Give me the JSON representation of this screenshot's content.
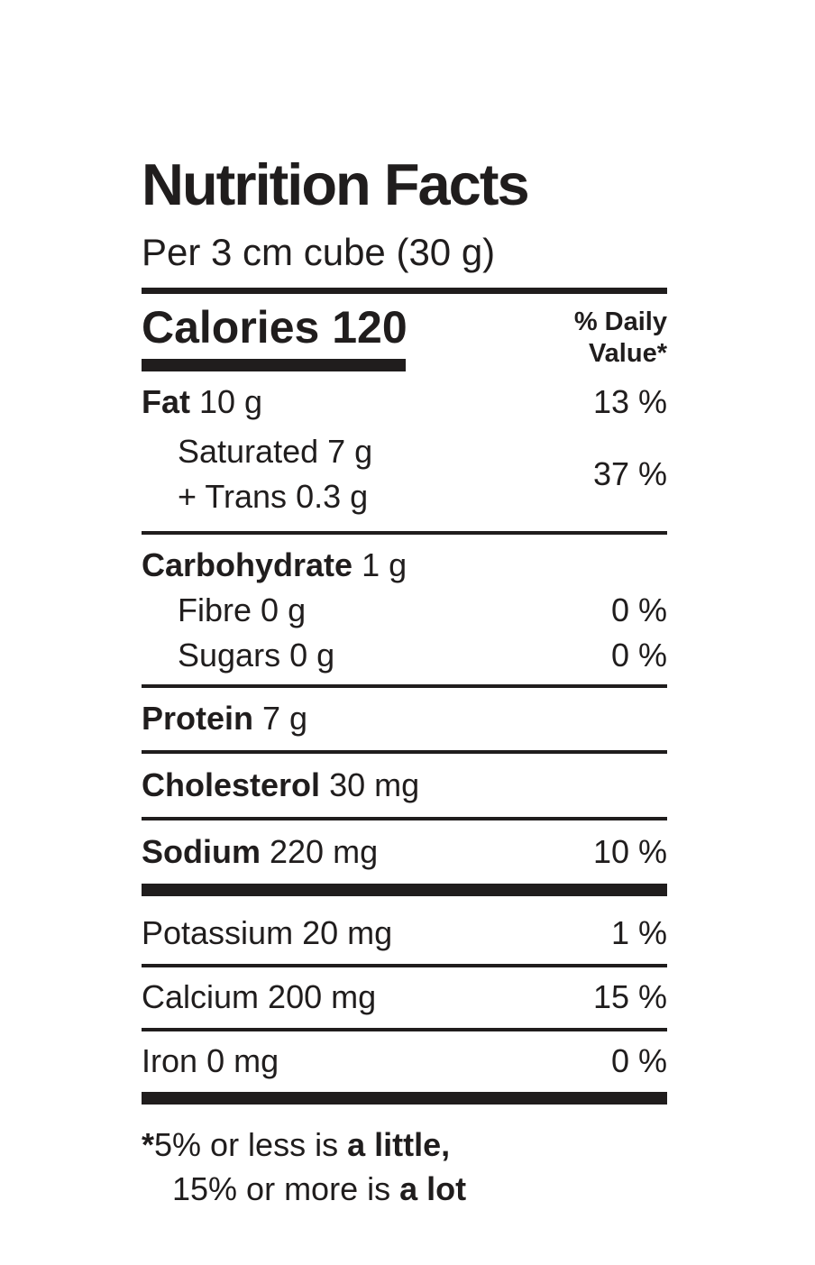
{
  "nutrition": {
    "title": "Nutrition Facts",
    "serving": "Per 3 cm cube (30 g)",
    "calories": {
      "label": "Calories",
      "value": "120"
    },
    "dv_header": {
      "line1": "% Daily",
      "line2": "Value*"
    },
    "fat": {
      "name": "Fat",
      "amount": "10 g",
      "dv": "13 %"
    },
    "saturated_trans": {
      "line1": "Saturated 7 g",
      "line2": "+ Trans 0.3 g",
      "dv": "37 %"
    },
    "carbohydrate": {
      "name": "Carbohydrate",
      "amount": "1 g"
    },
    "fibre": {
      "name": "Fibre",
      "amount": "0 g",
      "dv": "0 %"
    },
    "sugars": {
      "name": "Sugars",
      "amount": "0 g",
      "dv": "0 %"
    },
    "protein": {
      "name": "Protein",
      "amount": "7 g"
    },
    "cholesterol": {
      "name": "Cholesterol",
      "amount": "30 mg"
    },
    "sodium": {
      "name": "Sodium",
      "amount": "220 mg",
      "dv": "10 %"
    },
    "potassium": {
      "name": "Potassium",
      "amount": "20 mg",
      "dv": "1 %"
    },
    "calcium": {
      "name": "Calcium",
      "amount": "200 mg",
      "dv": "15 %"
    },
    "iron": {
      "name": "Iron",
      "amount": "0 mg",
      "dv": "0 %"
    },
    "footnote": {
      "asterisk": "*",
      "line1_text": "5% or less is ",
      "line1_bold": "a little,",
      "line2_text": "15% or more is ",
      "line2_bold": "a lot"
    }
  },
  "colors": {
    "ink": "#201d1d",
    "background": "#ffffff"
  }
}
